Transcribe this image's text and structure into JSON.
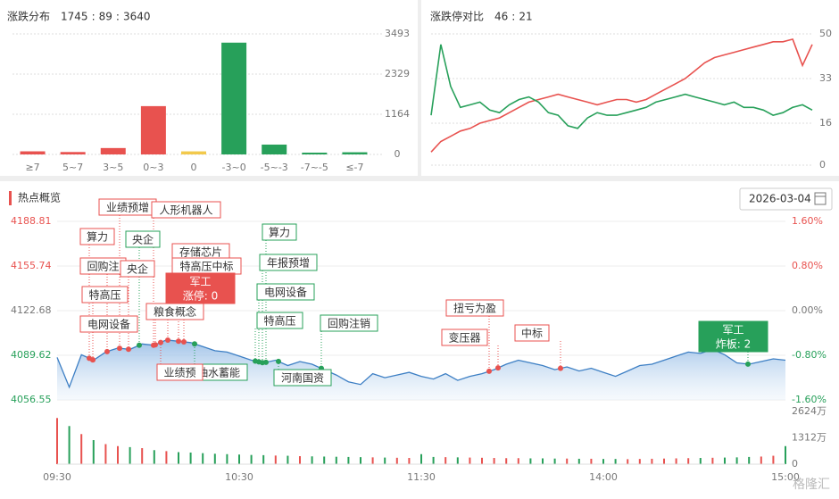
{
  "chart_data": [
    {
      "type": "bar",
      "title": "涨跌分布",
      "summary": [
        1745,
        89,
        3640
      ],
      "summary_colors": [
        "#e8524f",
        "#e0b83a",
        "#27a05a"
      ],
      "separator": ":",
      "categories": [
        "≥7",
        "5~7",
        "3~5",
        "0~3",
        "0",
        "-3~0",
        "-5~-3",
        "-7~-5",
        "≤-7"
      ],
      "values": [
        90,
        70,
        185,
        1400,
        89,
        3240,
        285,
        52,
        63
      ],
      "colors": [
        "#e8524f",
        "#e8524f",
        "#e8524f",
        "#e8524f",
        "#f2c94c",
        "#27a05a",
        "#27a05a",
        "#27a05a",
        "#27a05a"
      ],
      "ylim": [
        0,
        3493
      ],
      "yticks": [
        0,
        1164,
        2329,
        3493
      ],
      "grid": true
    },
    {
      "type": "line",
      "title": "涨跌停对比",
      "summary": [
        46,
        21
      ],
      "summary_colors": [
        "#e8524f",
        "#27a05a"
      ],
      "separator": ":",
      "series": [
        {
          "color": "#e8524f",
          "values": [
            5,
            9,
            11,
            13,
            14,
            16,
            17,
            18,
            20,
            22,
            24,
            25,
            26,
            27,
            26,
            25,
            24,
            23,
            24,
            25,
            25,
            24,
            25,
            27,
            29,
            31,
            33,
            36,
            39,
            41,
            42,
            43,
            44,
            45,
            46,
            47,
            47,
            48,
            38,
            46
          ]
        },
        {
          "color": "#27a05a",
          "values": [
            19,
            46,
            30,
            22,
            23,
            24,
            21,
            20,
            23,
            25,
            26,
            24,
            20,
            19,
            15,
            14,
            18,
            20,
            19,
            19,
            20,
            21,
            22,
            24,
            25,
            26,
            27,
            26,
            25,
            24,
            23,
            24,
            22,
            22,
            21,
            19,
            20,
            22,
            23,
            21
          ]
        }
      ],
      "ylim": [
        0,
        50
      ],
      "yticks": [
        0,
        16,
        33,
        50
      ],
      "grid": true
    },
    {
      "type": "area",
      "title": "热点概览",
      "date": "2026-03-04",
      "x": [
        0,
        4,
        8,
        12,
        16,
        20,
        24,
        28,
        32,
        36,
        40,
        44,
        48,
        52,
        56,
        60,
        64,
        68,
        72,
        76,
        80,
        84,
        88,
        92,
        96,
        100,
        104,
        108,
        112,
        116,
        120,
        124,
        128,
        132,
        136,
        140,
        144,
        148,
        152,
        156,
        160,
        164,
        168,
        172,
        176,
        180,
        184,
        188,
        192,
        196,
        200,
        204,
        208,
        212,
        216,
        220,
        224,
        228,
        232,
        236,
        240
      ],
      "xlim": [
        0,
        240
      ],
      "xticks": [
        {
          "value": 0,
          "label": "09:30"
        },
        {
          "value": 60,
          "label": "10:30"
        },
        {
          "value": 120,
          "label": "11:30"
        },
        {
          "value": 180,
          "label": "14:00"
        },
        {
          "value": 240,
          "label": "15:00"
        }
      ],
      "series": [
        {
          "color": "#3d7fc4",
          "values": [
            4088,
            4066,
            4090,
            4086,
            4092,
            4095,
            4094,
            4098,
            4097,
            4101,
            4100,
            4099,
            4096,
            4093,
            4092,
            4089,
            4086,
            4084,
            4086,
            4082,
            4085,
            4083,
            4079,
            4075,
            4070,
            4068,
            4076,
            4073,
            4075,
            4077,
            4074,
            4072,
            4076,
            4071,
            4074,
            4076,
            4079,
            4083,
            4086,
            4084,
            4082,
            4079,
            4081,
            4078,
            4080,
            4077,
            4074,
            4078,
            4082,
            4083,
            4086,
            4089,
            4092,
            4091,
            4094,
            4090,
            4084,
            4083,
            4085,
            4087,
            4086
          ]
        }
      ],
      "ylim": [
        4056.55,
        4188.81
      ],
      "yticks": [
        4188.81,
        4155.74,
        4122.68,
        4089.62,
        4056.55
      ],
      "y2lim": [
        -1.6,
        1.6
      ],
      "y2ticks": [
        {
          "value": 1.6,
          "label": "1.60%"
        },
        {
          "value": 0.8,
          "label": "0.80%"
        },
        {
          "value": 0,
          "label": "0.00%"
        },
        {
          "value": -0.8,
          "label": "-0.80%"
        },
        {
          "value": -1.6,
          "label": "-1.60%"
        }
      ],
      "grid": true,
      "volume": {
        "values": [
          2300,
          1900,
          1500,
          1200,
          1000,
          900,
          850,
          800,
          700,
          650,
          600,
          580,
          550,
          520,
          500,
          480,
          460,
          450,
          430,
          420,
          400,
          390,
          380,
          370,
          360,
          350,
          340,
          330,
          320,
          310,
          500,
          360,
          350,
          340,
          330,
          320,
          310,
          300,
          300,
          290,
          290,
          280,
          280,
          270,
          270,
          260,
          260,
          250,
          260,
          270,
          280,
          290,
          300,
          310,
          320,
          330,
          340,
          360,
          380,
          420,
          900
        ],
        "ylim": [
          0,
          2624
        ],
        "yticks": [
          {
            "value": 2624,
            "label": "2624万"
          },
          {
            "value": 1312,
            "label": "1312万"
          },
          0
        ],
        "up_color": "#e8524f",
        "down_color": "#27a05a"
      },
      "annotations": [
        {
          "text": "业绩预增",
          "color": "#e8524f"
        },
        {
          "text": "人形机器人",
          "color": "#e8524f"
        },
        {
          "text": "算力",
          "color": "#e8524f"
        },
        {
          "text": "央企",
          "color": "#27a05a"
        },
        {
          "text": "回购注",
          "color": "#e8524f"
        },
        {
          "text": "央企",
          "color": "#e8524f"
        },
        {
          "text": "存储芯片",
          "color": "#e8524f"
        },
        {
          "text": "特高压中标",
          "color": "#e8524f"
        },
        {
          "text": "特高压",
          "color": "#e8524f"
        },
        {
          "lines": [
            "军工",
            "涨停: 0"
          ],
          "color": "#e8524f",
          "filled": true
        },
        {
          "text": "电网设备",
          "color": "#e8524f"
        },
        {
          "text": "粮食概念",
          "color": "#e8524f"
        },
        {
          "text": "算力",
          "color": "#27a05a"
        },
        {
          "text": "年报预增",
          "color": "#27a05a"
        },
        {
          "text": "电网设备",
          "color": "#27a05a"
        },
        {
          "text": "特高压",
          "color": "#27a05a"
        },
        {
          "text": "回购注销",
          "color": "#27a05a"
        },
        {
          "text": "河南国资",
          "color": "#27a05a"
        },
        {
          "text": "抽水蓄能",
          "color": "#27a05a"
        },
        {
          "text": "业绩预",
          "color": "#e8524f"
        },
        {
          "text": "扭亏为盈",
          "color": "#e8524f"
        },
        {
          "text": "变压器",
          "color": "#e8524f"
        },
        {
          "text": "中标",
          "color": "#e8524f"
        },
        {
          "lines": [
            "军工",
            "炸板: 2"
          ],
          "color": "#27a05a",
          "filled": true
        }
      ]
    }
  ],
  "watermark": "格隆汇"
}
